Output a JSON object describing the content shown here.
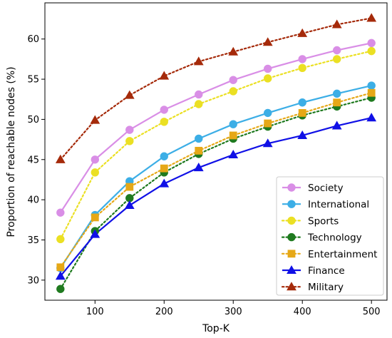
{
  "chart_data": {
    "type": "line",
    "xlabel": "Top-K",
    "ylabel": "Proportion of reachable nodes (%)",
    "x": [
      50,
      100,
      150,
      200,
      250,
      300,
      350,
      400,
      450,
      500
    ],
    "xlim": [
      27.5,
      522.5
    ],
    "ylim": [
      27.5,
      64.5
    ],
    "xticks": [
      100,
      200,
      300,
      400,
      500
    ],
    "yticks": [
      30,
      35,
      40,
      45,
      50,
      55,
      60
    ],
    "grid": false,
    "legend_position": "lower-right",
    "series": [
      {
        "name": "Society",
        "color": "#d98ee6",
        "dash": "solid",
        "marker": "circle",
        "values": [
          38.4,
          45.0,
          48.7,
          51.2,
          53.1,
          54.9,
          56.3,
          57.5,
          58.6,
          59.5
        ]
      },
      {
        "name": "International",
        "color": "#3caee6",
        "dash": "solid",
        "marker": "circle",
        "values": [
          31.5,
          38.1,
          42.3,
          45.4,
          47.6,
          49.4,
          50.8,
          52.1,
          53.2,
          54.2
        ]
      },
      {
        "name": "Sports",
        "color": "#ebe023",
        "dash": "dotted",
        "marker": "circle",
        "values": [
          35.1,
          43.4,
          47.3,
          49.7,
          51.9,
          53.5,
          55.1,
          56.4,
          57.5,
          58.5
        ]
      },
      {
        "name": "Technology",
        "color": "#1f7a1f",
        "dash": "dotted",
        "marker": "circle",
        "values": [
          28.9,
          36.1,
          40.2,
          43.4,
          45.7,
          47.6,
          49.1,
          50.5,
          51.6,
          52.7
        ]
      },
      {
        "name": "Entertainment",
        "color": "#e6a817",
        "dash": "dotted",
        "marker": "square",
        "values": [
          31.6,
          37.8,
          41.6,
          43.9,
          46.1,
          48.0,
          49.5,
          50.8,
          52.1,
          53.3
        ]
      },
      {
        "name": "Finance",
        "color": "#1010e6",
        "dash": "solid",
        "marker": "triangle",
        "values": [
          30.5,
          35.7,
          39.3,
          42.0,
          44.0,
          45.6,
          47.0,
          48.0,
          49.2,
          50.2
        ]
      },
      {
        "name": "Military",
        "color": "#a52a0a",
        "dash": "dotted",
        "marker": "triangle",
        "values": [
          45.0,
          49.9,
          53.0,
          55.4,
          57.2,
          58.4,
          59.6,
          60.7,
          61.8,
          62.6
        ]
      }
    ]
  }
}
